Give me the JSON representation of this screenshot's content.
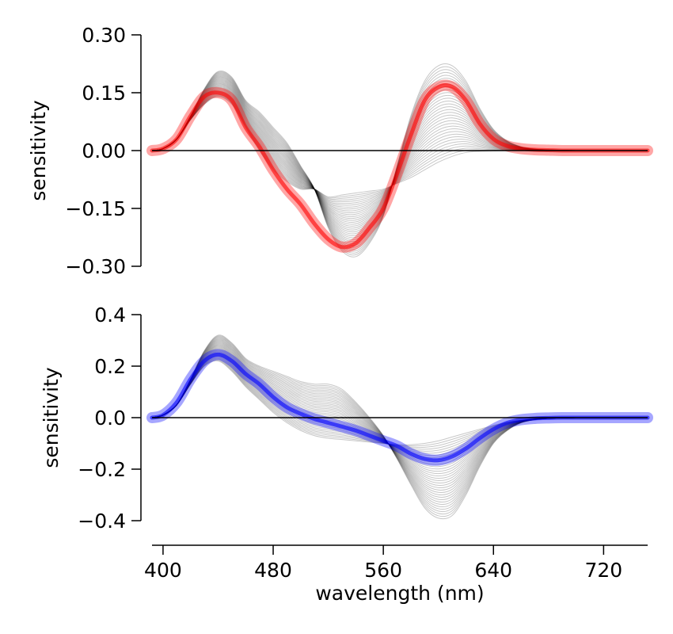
{
  "chart_data": [
    {
      "type": "line",
      "panel": "top",
      "title": "",
      "xlabel": "",
      "ylabel": "sensitivity",
      "xlim": [
        392,
        752
      ],
      "ylim": [
        -0.3,
        0.3
      ],
      "yticks": [
        -0.3,
        -0.15,
        0.0,
        0.15,
        0.3
      ],
      "ytick_labels": [
        "−0.30",
        "−0.15",
        "0.00",
        "0.15",
        "0.30"
      ],
      "highlight_color": "#ff0000",
      "family_color": "#000000",
      "family_count": 34,
      "family_note_values": "grey curve family interpolates between the two envelope curves",
      "x": [
        392,
        400,
        410,
        420,
        430,
        440,
        450,
        460,
        470,
        480,
        490,
        500,
        510,
        520,
        530,
        540,
        550,
        560,
        570,
        580,
        590,
        600,
        610,
        620,
        630,
        640,
        650,
        660,
        670,
        680,
        690,
        700,
        710,
        720,
        730,
        740,
        752
      ],
      "envelope_a": [
        0.0,
        0.005,
        0.03,
        0.09,
        0.16,
        0.205,
        0.19,
        0.13,
        0.1,
        0.06,
        0.02,
        -0.04,
        -0.1,
        -0.2,
        -0.26,
        -0.275,
        -0.24,
        -0.17,
        -0.04,
        0.09,
        0.18,
        0.22,
        0.22,
        0.18,
        0.11,
        0.055,
        0.025,
        0.01,
        0.004,
        0.002,
        0.001,
        0.0,
        0.0,
        0.0,
        0.0,
        0.0,
        0.0
      ],
      "envelope_b": [
        0.0,
        0.005,
        0.03,
        0.08,
        0.12,
        0.14,
        0.12,
        0.06,
        0.0,
        -0.05,
        -0.08,
        -0.1,
        -0.1,
        -0.12,
        -0.115,
        -0.11,
        -0.105,
        -0.1,
        -0.085,
        -0.07,
        -0.05,
        -0.03,
        -0.015,
        -0.005,
        -0.002,
        -0.001,
        0.0,
        0.0,
        0.0,
        0.0,
        0.0,
        0.0,
        0.0,
        0.0,
        0.0,
        0.0,
        0.0
      ],
      "highlight": [
        0.0,
        0.005,
        0.03,
        0.09,
        0.14,
        0.15,
        0.13,
        0.06,
        0.01,
        -0.05,
        -0.1,
        -0.14,
        -0.19,
        -0.23,
        -0.25,
        -0.24,
        -0.2,
        -0.15,
        -0.06,
        0.04,
        0.13,
        0.165,
        0.165,
        0.13,
        0.07,
        0.03,
        0.012,
        0.005,
        0.002,
        0.001,
        0.0,
        0.0,
        0.0,
        0.0,
        0.0,
        0.0,
        0.0
      ]
    },
    {
      "type": "line",
      "panel": "bottom",
      "title": "",
      "xlabel": "wavelength (nm)",
      "ylabel": "sensitivity",
      "xlim": [
        392,
        752
      ],
      "ylim": [
        -0.4,
        0.4
      ],
      "yticks": [
        -0.4,
        -0.2,
        0.0,
        0.2,
        0.4
      ],
      "ytick_labels": [
        "−0.4",
        "−0.2",
        "0.0",
        "0.2",
        "0.4"
      ],
      "xticks": [
        400,
        480,
        560,
        640,
        720
      ],
      "xtick_labels": [
        "400",
        "480",
        "560",
        "640",
        "720"
      ],
      "highlight_color": "#0000ff",
      "family_color": "#000000",
      "family_count": 34,
      "x": [
        392,
        400,
        410,
        420,
        430,
        440,
        450,
        460,
        470,
        480,
        490,
        500,
        510,
        520,
        530,
        540,
        550,
        560,
        570,
        580,
        590,
        600,
        610,
        620,
        630,
        640,
        650,
        660,
        670,
        680,
        690,
        700,
        710,
        720,
        730,
        740,
        752
      ],
      "envelope_a": [
        0.0,
        0.01,
        0.05,
        0.15,
        0.26,
        0.32,
        0.29,
        0.23,
        0.2,
        0.18,
        0.16,
        0.14,
        0.13,
        0.13,
        0.11,
        0.06,
        0.0,
        -0.07,
        -0.16,
        -0.26,
        -0.35,
        -0.39,
        -0.38,
        -0.3,
        -0.19,
        -0.1,
        -0.05,
        -0.02,
        -0.008,
        -0.003,
        -0.001,
        0.0,
        0.0,
        0.0,
        0.0,
        0.0,
        0.0
      ],
      "envelope_b": [
        0.0,
        0.01,
        0.05,
        0.13,
        0.2,
        0.22,
        0.18,
        0.12,
        0.07,
        0.02,
        -0.02,
        -0.05,
        -0.07,
        -0.08,
        -0.085,
        -0.09,
        -0.095,
        -0.1,
        -0.105,
        -0.105,
        -0.1,
        -0.09,
        -0.075,
        -0.06,
        -0.045,
        -0.03,
        -0.018,
        -0.01,
        -0.005,
        -0.002,
        -0.001,
        0.0,
        0.0,
        0.0,
        0.0,
        0.0,
        0.0
      ],
      "highlight": [
        0.0,
        0.01,
        0.06,
        0.15,
        0.22,
        0.245,
        0.22,
        0.17,
        0.13,
        0.08,
        0.04,
        0.015,
        -0.005,
        -0.02,
        -0.035,
        -0.05,
        -0.07,
        -0.09,
        -0.11,
        -0.14,
        -0.16,
        -0.165,
        -0.15,
        -0.12,
        -0.08,
        -0.045,
        -0.02,
        -0.008,
        -0.003,
        -0.001,
        0.0,
        0.0,
        0.0,
        0.0,
        0.0,
        0.0,
        0.0
      ]
    }
  ]
}
